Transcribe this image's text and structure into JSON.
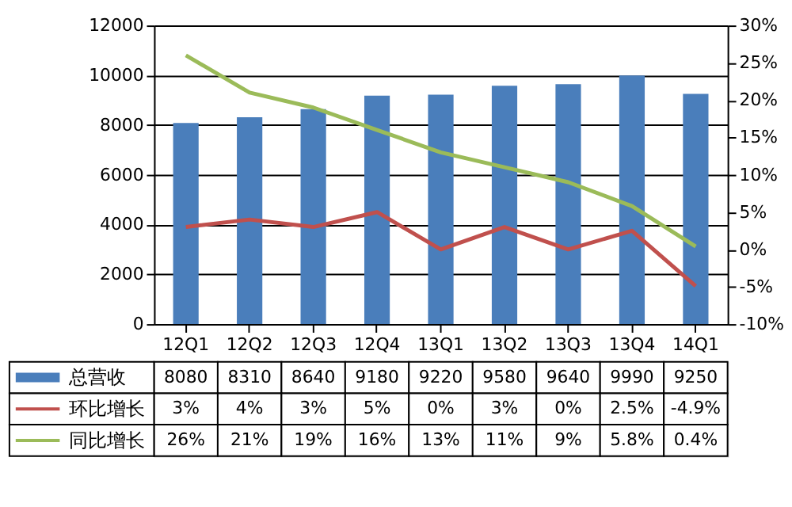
{
  "chart_data": {
    "type": "bar",
    "categories": [
      "12Q1",
      "12Q2",
      "12Q3",
      "12Q4",
      "13Q1",
      "13Q2",
      "13Q3",
      "13Q4",
      "14Q1"
    ],
    "series": [
      {
        "name": "总营收",
        "axis": "y",
        "color": "#4a7ebb",
        "values": [
          8080,
          8310,
          8640,
          9180,
          9220,
          9580,
          9640,
          9990,
          9250
        ],
        "value_labels": [
          "8080",
          "8310",
          "8640",
          "9180",
          "9220",
          "9580",
          "9640",
          "9990",
          "9250"
        ]
      },
      {
        "name": "环比增长",
        "type": "line",
        "axis": "y2",
        "color": "#c0504d",
        "values": [
          3,
          4,
          3,
          5,
          0,
          3,
          0,
          2.5,
          -4.9
        ],
        "value_labels": [
          "3%",
          "4%",
          "3%",
          "5%",
          "0%",
          "3%",
          "0%",
          "2.5%",
          "-4.9%"
        ]
      },
      {
        "name": "同比增长",
        "type": "line",
        "axis": "y2",
        "color": "#9bbb59",
        "values": [
          26,
          21,
          19,
          16,
          13,
          11,
          9,
          5.8,
          0.4
        ],
        "value_labels": [
          "26%",
          "21%",
          "19%",
          "16%",
          "13%",
          "11%",
          "9%",
          "5.8%",
          "0.4%"
        ]
      }
    ],
    "ylim": [
      0,
      12000
    ],
    "yticks": [
      0,
      2000,
      4000,
      6000,
      8000,
      10000,
      12000
    ],
    "y2lim": [
      -10,
      30
    ],
    "y2ticks": [
      {
        "value": -10,
        "label": "-10%"
      },
      {
        "value": -5,
        "label": "-5%"
      },
      {
        "value": 0,
        "label": "0%"
      },
      {
        "value": 5,
        "label": "5%"
      },
      {
        "value": 10,
        "label": "10%"
      },
      {
        "value": 15,
        "label": "15%"
      },
      {
        "value": 20,
        "label": "20%"
      },
      {
        "value": 25,
        "label": "25%"
      },
      {
        "value": 30,
        "label": "30%"
      }
    ],
    "grid": "y",
    "legend": "bottom",
    "marker": "none",
    "line_style": "solid"
  }
}
